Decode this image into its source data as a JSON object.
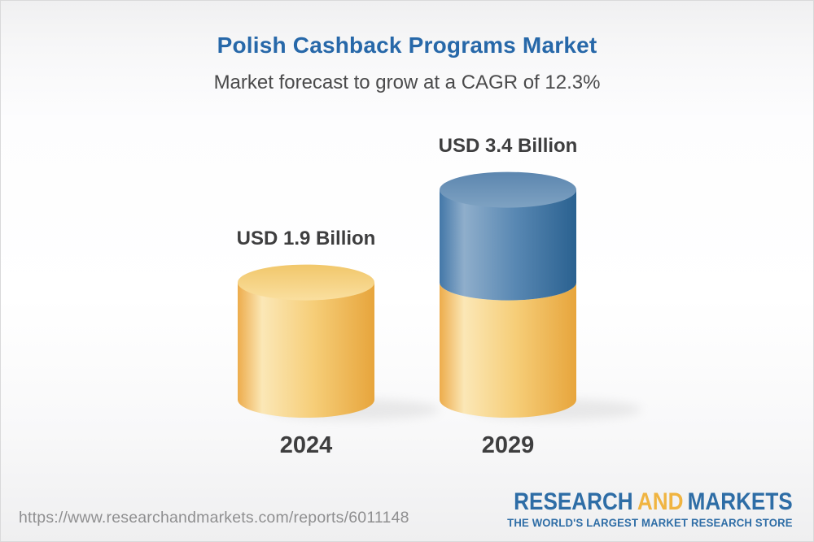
{
  "header": {
    "title": "Polish Cashback Programs Market",
    "subtitle": "Market forecast to grow at a CAGR of 12.3%"
  },
  "chart_data": {
    "type": "bar",
    "variant": "3d-cylinder-stacked",
    "title": "Polish Cashback Programs Market",
    "subtitle": "Market forecast to grow at a CAGR of 12.3%",
    "unit": "USD Billion",
    "cagr_percent": 12.3,
    "categories": [
      "2024",
      "2029"
    ],
    "values": [
      1.9,
      3.4
    ],
    "legend": "none",
    "bars": [
      {
        "category": "2024",
        "label": "USD 1.9 Billion",
        "total": 1.9,
        "segments": [
          {
            "name": "market-2024",
            "value": 1.9,
            "palette": "gold"
          }
        ]
      },
      {
        "category": "2029",
        "label": "USD 3.4 Billion",
        "total": 3.4,
        "segments": [
          {
            "name": "base-2024-level",
            "value": 1.9,
            "palette": "gold"
          },
          {
            "name": "forecast-growth",
            "value": 1.5,
            "palette": "blue"
          }
        ]
      }
    ],
    "palettes": {
      "gold": {
        "side_edge_left": "#EDAC4B",
        "side_highlight": "#FBE7B6",
        "side_mid": "#F6CE79",
        "side_edge_right": "#E7A53C",
        "top_from": "#F1C76B",
        "top_to": "#FADF9F"
      },
      "blue": {
        "side_edge_left": "#4377A8",
        "side_highlight": "#8FAECB",
        "side_mid": "#5988B3",
        "side_edge_right": "#2A6190",
        "top_from": "#5C86AF",
        "top_to": "#7EA2C2"
      }
    }
  },
  "footer": {
    "url": "https://www.researchandmarkets.com/reports/6011148",
    "logo": {
      "word1": "RESEARCH",
      "word2": "AND",
      "word3": "MARKETS",
      "tagline": "THE WORLD'S LARGEST MARKET RESEARCH STORE"
    }
  },
  "colors": {
    "title_blue": "#2768A9",
    "subtitle_gray": "#4A4A4B",
    "label_dark": "#3E3E3F",
    "url_gray": "#8F8F90",
    "logo_blue": "#2E6DA6",
    "logo_gold": "#F0B441",
    "shadow": "#9A9A9A"
  }
}
